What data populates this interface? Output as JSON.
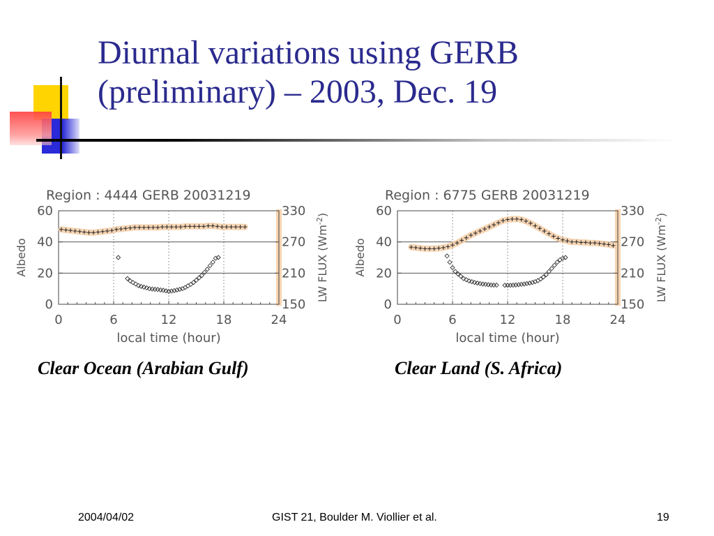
{
  "slide": {
    "title_line1": "Diurnal variations using GERB",
    "title_line2": "(preliminary) – 2003, Dec. 19",
    "colors": {
      "title": "#2a2a8e",
      "deco_yellow": "#ffd400",
      "deco_blue": "#2a2ad8",
      "deco_red": "#ff4a4a"
    },
    "footer": {
      "date": "2004/04/02",
      "center": "GIST 21, Boulder  M. Viollier et  al.",
      "page": "19"
    }
  },
  "chart_data": [
    {
      "type": "scatter",
      "title": "Region :  4444 GERB 20031219",
      "caption": "Clear Ocean (Arabian Gulf)",
      "xlabel": "local time (hour)",
      "ylabel": "Albedo",
      "y2label": "LW FLUX (Wm",
      "y2label_sup": "-2",
      "y2label_close": ")",
      "xlim": [
        0,
        24
      ],
      "ylim": [
        0,
        60
      ],
      "y2lim": [
        150,
        330
      ],
      "xticks": [
        "0",
        "6",
        "12",
        "18",
        "24"
      ],
      "yticks": [
        "0",
        "20",
        "40",
        "60"
      ],
      "y2ticks": [
        "150",
        "210",
        "270",
        "330"
      ],
      "grid": "dotted verticals at 6, 12, 18; solid horizontals at 20, 40",
      "series": [
        {
          "marker": "diamond",
          "axis": "left",
          "x": [
            6.5,
            7.5,
            7.8,
            8.1,
            8.4,
            8.7,
            9.0,
            9.3,
            9.6,
            9.9,
            10.2,
            10.5,
            10.8,
            11.1,
            11.4,
            11.7,
            12.0,
            12.3,
            12.6,
            12.9,
            13.2,
            13.5,
            13.8,
            14.1,
            14.4,
            14.7,
            15.0,
            15.3,
            15.6,
            15.9,
            16.2,
            16.5,
            16.8,
            17.1,
            17.4
          ],
          "y": [
            30.0,
            16.5,
            15.0,
            14.0,
            13.0,
            12.0,
            11.5,
            11.0,
            10.5,
            10.0,
            9.8,
            9.6,
            9.5,
            9.2,
            9.0,
            8.6,
            8.3,
            8.5,
            8.8,
            9.2,
            9.6,
            10.0,
            10.8,
            11.8,
            12.8,
            14.0,
            15.5,
            17.0,
            18.5,
            20.5,
            22.5,
            24.8,
            27.0,
            29.5,
            30.0
          ]
        },
        {
          "marker": "plus",
          "axis": "right",
          "x": [
            0.3,
            0.8,
            1.3,
            1.8,
            2.3,
            2.8,
            3.3,
            3.8,
            4.3,
            4.8,
            5.3,
            5.8,
            6.3,
            6.8,
            7.3,
            7.8,
            8.3,
            8.8,
            9.3,
            9.8,
            10.3,
            10.8,
            11.3,
            11.8,
            12.3,
            12.8,
            13.3,
            13.8,
            14.3,
            14.8,
            15.3,
            15.8,
            16.3,
            16.8,
            17.3,
            17.8,
            18.3,
            18.8,
            19.3,
            19.8,
            20.3
          ],
          "y": [
            294,
            293,
            292,
            291,
            290,
            289,
            288,
            288,
            289,
            290,
            291,
            292,
            294,
            295,
            296,
            297,
            298,
            298,
            298,
            298,
            298,
            298,
            299,
            299,
            299,
            299,
            299,
            300,
            300,
            300,
            300,
            300,
            301,
            301,
            300,
            299,
            299,
            299,
            299,
            299,
            299
          ]
        }
      ]
    },
    {
      "type": "scatter",
      "title": "Region :  6775 GERB 20031219",
      "caption": "Clear Land (S. Africa)",
      "xlabel": "local time (hour)",
      "ylabel": "Albedo",
      "y2label": "LW FLUX (Wm",
      "y2label_sup": "-2",
      "y2label_close": ")",
      "xlim": [
        0,
        24
      ],
      "ylim": [
        0,
        60
      ],
      "y2lim": [
        150,
        330
      ],
      "xticks": [
        "0",
        "6",
        "12",
        "18",
        "24"
      ],
      "yticks": [
        "0",
        "20",
        "40",
        "60"
      ],
      "y2ticks": [
        "150",
        "210",
        "270",
        "330"
      ],
      "grid": "dotted verticals at 6, 12, 18; solid horizontals at 20, 40",
      "series": [
        {
          "marker": "diamond",
          "axis": "left",
          "x": [
            5.4,
            5.7,
            6.0,
            6.3,
            6.6,
            6.9,
            7.2,
            7.5,
            7.8,
            8.1,
            8.4,
            8.7,
            9.0,
            9.3,
            9.6,
            9.9,
            10.2,
            10.5,
            10.8,
            11.7,
            12.0,
            12.3,
            12.6,
            12.9,
            13.2,
            13.5,
            13.8,
            14.1,
            14.4,
            14.7,
            15.0,
            15.3,
            15.6,
            15.9,
            16.2,
            16.5,
            16.8,
            17.1,
            17.4,
            17.7,
            18.0,
            18.3
          ],
          "y": [
            31.0,
            27.0,
            23.5,
            21.0,
            19.5,
            18.0,
            16.5,
            15.8,
            15.0,
            14.5,
            14.0,
            13.6,
            13.3,
            13.0,
            12.8,
            12.6,
            12.4,
            12.3,
            12.3,
            12.2,
            12.2,
            12.2,
            12.3,
            12.4,
            12.6,
            12.8,
            13.0,
            13.3,
            13.6,
            14.0,
            14.5,
            15.2,
            16.2,
            17.5,
            19.0,
            21.0,
            23.0,
            25.0,
            27.0,
            28.5,
            29.5,
            30.0
          ]
        },
        {
          "marker": "plus",
          "axis": "right",
          "x": [
            1.5,
            2.0,
            2.5,
            3.0,
            3.5,
            4.0,
            4.5,
            5.0,
            5.5,
            6.0,
            6.5,
            7.0,
            7.5,
            8.0,
            8.5,
            9.0,
            9.5,
            10.0,
            10.5,
            11.0,
            11.5,
            12.0,
            12.5,
            13.0,
            13.5,
            14.0,
            14.5,
            15.0,
            15.5,
            16.0,
            16.5,
            17.0,
            17.5,
            18.0,
            18.5,
            19.0,
            19.5,
            20.0,
            20.5,
            21.0,
            21.5,
            22.0,
            22.5,
            23.0,
            23.5
          ],
          "y": [
            260,
            259,
            258,
            257,
            257,
            257,
            258,
            259,
            261,
            264,
            268,
            273,
            278,
            283,
            287,
            291,
            295,
            299,
            303,
            307,
            311,
            313,
            314,
            314,
            313,
            310,
            306,
            301,
            296,
            291,
            286,
            281,
            277,
            274,
            272,
            270,
            270,
            269,
            269,
            268,
            268,
            267,
            266,
            265,
            263
          ]
        }
      ]
    }
  ]
}
